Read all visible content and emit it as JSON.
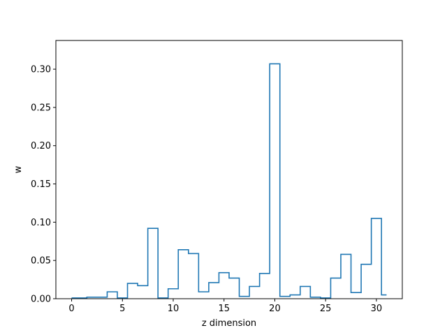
{
  "chart_data": {
    "type": "step",
    "title": "",
    "xlabel": "z dimension",
    "ylabel": "w",
    "xlim": [
      -1.55,
      32.55
    ],
    "ylim": [
      0,
      0.3375
    ],
    "xticks": [
      0,
      5,
      10,
      15,
      20,
      25,
      30
    ],
    "xtick_labels": [
      "0",
      "5",
      "10",
      "15",
      "20",
      "25",
      "30"
    ],
    "yticks": [
      0,
      0.05,
      0.1,
      0.15,
      0.2,
      0.25,
      0.3
    ],
    "ytick_labels": [
      "0.00",
      "0.05",
      "0.10",
      "0.15",
      "0.20",
      "0.25",
      "0.30"
    ],
    "grid": false,
    "series": [
      {
        "color": "#1f77b4",
        "step_where": "mid",
        "x": [
          0,
          1,
          2,
          3,
          4,
          5,
          6,
          7,
          8,
          9,
          10,
          11,
          12,
          13,
          14,
          15,
          16,
          17,
          18,
          19,
          20,
          21,
          22,
          23,
          24,
          25,
          26,
          27,
          28,
          29,
          30,
          31
        ],
        "values": [
          0.001,
          0.001,
          0.002,
          0.002,
          0.009,
          0.001,
          0.02,
          0.017,
          0.092,
          0.001,
          0.013,
          0.064,
          0.059,
          0.009,
          0.021,
          0.034,
          0.027,
          0.003,
          0.016,
          0.033,
          0.307,
          0.003,
          0.005,
          0.016,
          0.002,
          0.001,
          0.027,
          0.058,
          0.008,
          0.045,
          0.105,
          0.005
        ]
      }
    ]
  }
}
